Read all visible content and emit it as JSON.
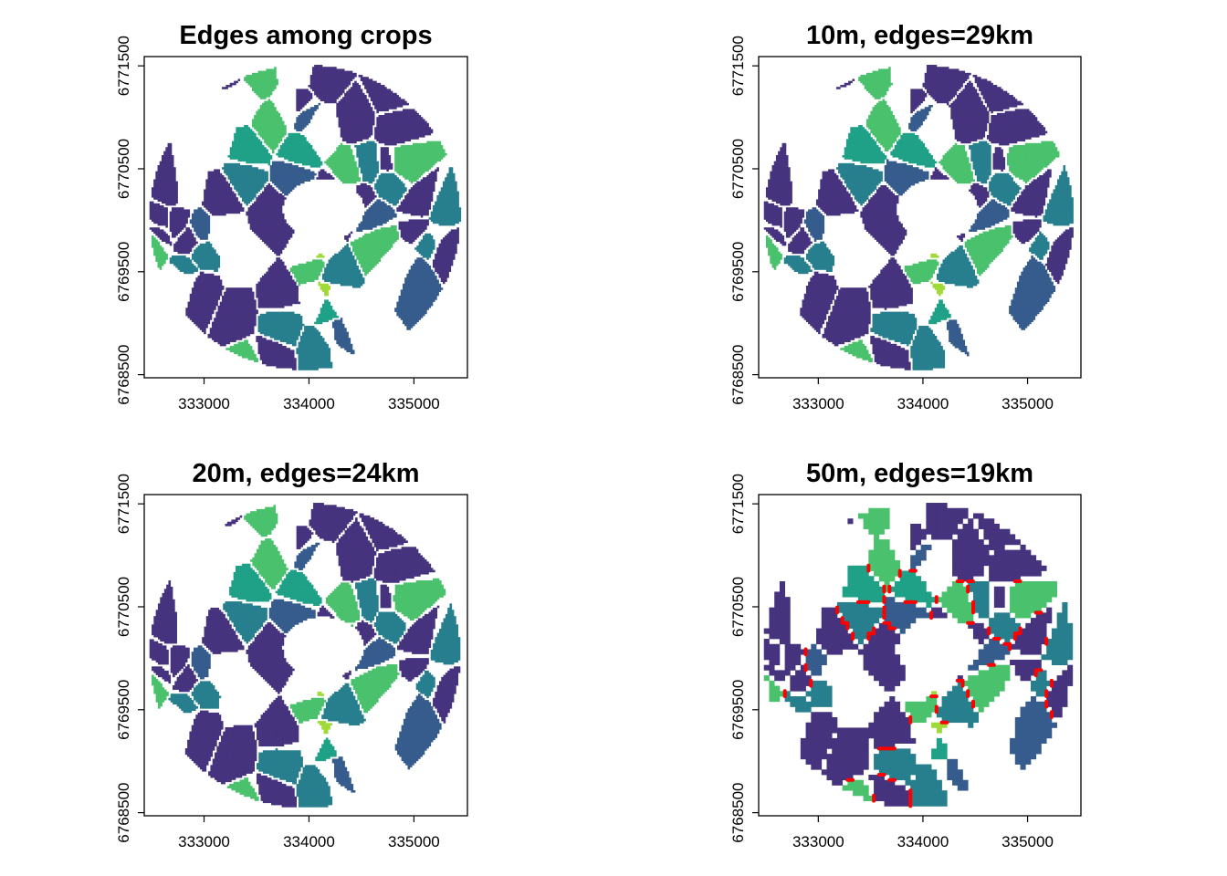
{
  "chart_data": [
    {
      "type": "heatmap",
      "title": "Edges among crops",
      "xticks": [
        333000,
        334000,
        335000
      ],
      "yticks": [
        6768500,
        6769500,
        6770500,
        6771500
      ],
      "xlim": [
        332430,
        335510
      ],
      "ylim": [
        6768470,
        6771590
      ],
      "resolution_m": null,
      "edges_km": null,
      "show_edges": false
    },
    {
      "type": "heatmap",
      "title": "10m, edges=29km",
      "xticks": [
        333000,
        334000,
        335000
      ],
      "yticks": [
        6768500,
        6769500,
        6770500,
        6771500
      ],
      "xlim": [
        332430,
        335510
      ],
      "ylim": [
        6768470,
        6771590
      ],
      "resolution_m": 10,
      "edges_km": 29,
      "show_edges": true
    },
    {
      "type": "heatmap",
      "title": "20m, edges=24km",
      "xticks": [
        333000,
        334000,
        335000
      ],
      "yticks": [
        6768500,
        6769500,
        6770500,
        6771500
      ],
      "xlim": [
        332430,
        335510
      ],
      "ylim": [
        6768470,
        6771590
      ],
      "resolution_m": 20,
      "edges_km": 24,
      "show_edges": true
    },
    {
      "type": "heatmap",
      "title": "50m, edges=19km",
      "xticks": [
        333000,
        334000,
        335000
      ],
      "yticks": [
        6768500,
        6769500,
        6770500,
        6771500
      ],
      "xlim": [
        332430,
        335510
      ],
      "ylim": [
        6768470,
        6771590
      ],
      "resolution_m": 50,
      "edges_km": 19,
      "show_edges": true
    }
  ],
  "colors": {
    "crop_classes": [
      "#46337e",
      "#277f8e",
      "#1fa187",
      "#4ac16d",
      "#a0da39",
      "#365c8d"
    ],
    "edge": "#ff0000",
    "frame": "#000000"
  }
}
